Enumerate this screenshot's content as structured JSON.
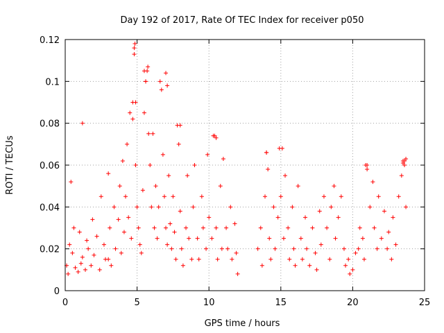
{
  "chart_data": {
    "type": "scatter",
    "title": "Day 192 of 2017, Rate Of TEC Index for receiver p050",
    "xlabel": "GPS time / hours",
    "ylabel": "ROTI / TECUs",
    "xlim": [
      0,
      25
    ],
    "ylim": [
      0,
      0.12
    ],
    "x_ticks": [
      0,
      5,
      10,
      15,
      20,
      25
    ],
    "x_tick_labels": [
      "0",
      "5",
      "10",
      "15",
      "20",
      "25"
    ],
    "y_ticks": [
      0,
      0.02,
      0.04,
      0.06,
      0.08,
      0.1,
      0.12
    ],
    "y_tick_labels": [
      "0",
      "0.02",
      "0.04",
      "0.06",
      "0.08",
      "0.1",
      "0.12"
    ],
    "grid": true,
    "legend": "none",
    "marker": "+",
    "color": "#ff0000",
    "gap_hours": [
      12.1,
      13.3
    ],
    "series": [
      {
        "x": [
          0.1,
          0.2,
          0.3,
          0.5,
          0.6,
          0.7,
          0.9,
          1.0,
          1.1,
          1.2,
          1.4,
          1.5,
          1.6,
          1.8,
          1.9,
          2.0,
          2.2,
          2.4,
          2.5,
          2.7,
          2.8,
          3.0,
          3.1,
          3.2,
          3.4,
          3.5,
          3.7,
          3.8,
          3.9,
          4.0,
          4.1,
          4.2,
          4.3,
          4.4,
          4.5,
          4.6,
          4.7,
          4.8,
          4.85,
          4.9,
          5.0,
          5.1,
          5.2,
          5.3,
          5.4,
          5.5,
          5.6,
          5.7,
          5.75,
          5.8,
          5.9,
          6.0,
          6.1,
          6.2,
          6.3,
          6.4,
          6.5,
          6.6,
          6.7,
          6.8,
          6.9,
          7.0,
          7.1,
          7.2,
          7.3,
          7.4,
          7.5,
          7.6,
          7.7,
          7.8,
          7.9,
          8.0,
          8.1,
          8.2,
          8.4,
          8.5,
          8.6,
          8.8,
          8.9,
          9.0,
          9.2,
          9.3,
          9.5,
          9.6,
          9.8,
          9.9,
          10.0,
          10.2,
          10.3,
          10.5,
          10.6,
          10.8,
          10.9,
          11.0,
          11.2,
          11.3,
          11.5,
          11.6,
          11.8,
          11.9,
          12.0,
          13.4,
          13.6,
          13.7,
          13.9,
          14.0,
          14.2,
          14.3,
          14.5,
          14.6,
          14.8,
          14.9,
          15.0,
          15.2,
          15.3,
          15.5,
          15.6,
          15.8,
          15.9,
          16.0,
          16.2,
          16.4,
          16.5,
          16.7,
          16.8,
          17.0,
          17.2,
          17.4,
          17.5,
          17.7,
          17.8,
          18.0,
          18.2,
          18.4,
          18.5,
          18.7,
          18.8,
          19.0,
          19.2,
          19.4,
          19.5,
          19.7,
          19.8,
          20.0,
          20.2,
          20.4,
          20.5,
          20.7,
          20.8,
          21.0,
          21.2,
          21.4,
          21.5,
          21.7,
          21.8,
          22.0,
          22.2,
          22.4,
          22.5,
          22.7,
          22.8,
          23.0,
          23.2,
          23.4,
          23.5,
          23.6,
          23.7,
          0.4,
          1.2,
          3.0,
          4.7,
          4.8,
          4.9,
          5.5,
          5.6,
          7.0,
          7.1,
          8.0,
          10.4,
          10.5,
          14.0,
          14.1,
          15.1,
          20.9,
          21.0,
          23.5,
          23.6,
          23.7
        ],
        "y": [
          0.012,
          0.008,
          0.022,
          0.018,
          0.03,
          0.011,
          0.009,
          0.028,
          0.013,
          0.016,
          0.01,
          0.024,
          0.02,
          0.012,
          0.034,
          0.017,
          0.026,
          0.01,
          0.045,
          0.022,
          0.015,
          0.056,
          0.03,
          0.012,
          0.04,
          0.02,
          0.034,
          0.05,
          0.018,
          0.062,
          0.028,
          0.045,
          0.07,
          0.035,
          0.085,
          0.025,
          0.09,
          0.116,
          0.118,
          0.06,
          0.04,
          0.03,
          0.022,
          0.018,
          0.048,
          0.085,
          0.1,
          0.105,
          0.107,
          0.075,
          0.06,
          0.04,
          0.075,
          0.03,
          0.05,
          0.025,
          0.04,
          0.1,
          0.096,
          0.065,
          0.045,
          0.03,
          0.022,
          0.055,
          0.032,
          0.02,
          0.045,
          0.028,
          0.015,
          0.079,
          0.07,
          0.038,
          0.02,
          0.012,
          0.03,
          0.055,
          0.025,
          0.015,
          0.04,
          0.06,
          0.025,
          0.015,
          0.045,
          0.03,
          0.02,
          0.065,
          0.035,
          0.025,
          0.074,
          0.03,
          0.015,
          0.05,
          0.02,
          0.063,
          0.03,
          0.02,
          0.04,
          0.015,
          0.032,
          0.018,
          0.008,
          0.02,
          0.03,
          0.012,
          0.045,
          0.066,
          0.025,
          0.015,
          0.04,
          0.02,
          0.035,
          0.068,
          0.045,
          0.025,
          0.055,
          0.03,
          0.015,
          0.04,
          0.02,
          0.012,
          0.05,
          0.025,
          0.015,
          0.035,
          0.02,
          0.012,
          0.03,
          0.018,
          0.01,
          0.038,
          0.022,
          0.045,
          0.03,
          0.015,
          0.04,
          0.05,
          0.025,
          0.035,
          0.045,
          0.02,
          0.012,
          0.015,
          0.008,
          0.01,
          0.018,
          0.02,
          0.03,
          0.025,
          0.015,
          0.06,
          0.04,
          0.052,
          0.03,
          0.02,
          0.045,
          0.025,
          0.038,
          0.02,
          0.028,
          0.015,
          0.035,
          0.022,
          0.045,
          0.055,
          0.062,
          0.06,
          0.04,
          0.052,
          0.08,
          0.015,
          0.082,
          0.113,
          0.09,
          0.105,
          0.1,
          0.104,
          0.098,
          0.079,
          0.074,
          0.073,
          0.066,
          0.058,
          0.068,
          0.06,
          0.058,
          0.061,
          0.062,
          0.063
        ]
      }
    ]
  }
}
